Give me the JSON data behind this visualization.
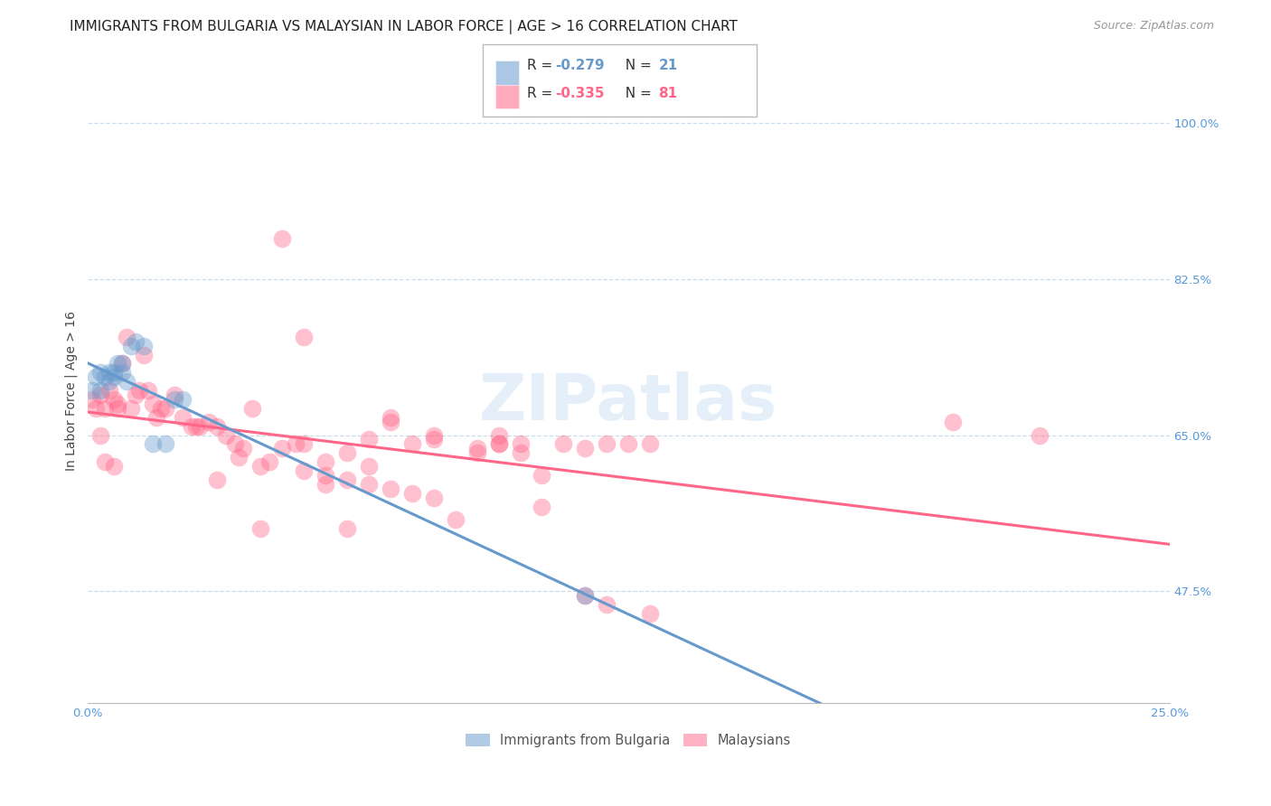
{
  "title": "IMMIGRANTS FROM BULGARIA VS MALAYSIAN IN LABOR FORCE | AGE > 16 CORRELATION CHART",
  "source": "Source: ZipAtlas.com",
  "ylabel": "In Labor Force | Age > 16",
  "watermark": "ZIPatlas",
  "xlim": [
    0.0,
    0.25
  ],
  "ylim": [
    0.35,
    1.05
  ],
  "ytick_positions": [
    1.0,
    0.825,
    0.65,
    0.475
  ],
  "ytick_labels": [
    "100.0%",
    "82.5%",
    "65.0%",
    "47.5%"
  ],
  "bulgaria_color": "#6699CC",
  "malaysia_color": "#FF6688",
  "legend_label_1": "R = -0.279   N = 21",
  "legend_label_2": "R = -0.335   N = 81",
  "legend_bottom_label_1": "Immigrants from Bulgaria",
  "legend_bottom_label_2": "Malaysians",
  "background_color": "#FFFFFF",
  "grid_color": "#CCDDEE",
  "bulgaria_x": [
    0.001,
    0.002,
    0.003,
    0.003,
    0.004,
    0.005,
    0.005,
    0.006,
    0.006,
    0.007,
    0.008,
    0.008,
    0.009,
    0.01,
    0.011,
    0.013,
    0.015,
    0.018,
    0.02,
    0.022,
    0.115
  ],
  "bulgaria_y": [
    0.7,
    0.715,
    0.7,
    0.72,
    0.715,
    0.71,
    0.72,
    0.715,
    0.72,
    0.73,
    0.72,
    0.73,
    0.71,
    0.75,
    0.755,
    0.75,
    0.64,
    0.64,
    0.69,
    0.69,
    0.47
  ],
  "malaysia_x": [
    0.001,
    0.002,
    0.003,
    0.003,
    0.004,
    0.004,
    0.005,
    0.006,
    0.006,
    0.007,
    0.007,
    0.008,
    0.009,
    0.01,
    0.011,
    0.012,
    0.013,
    0.014,
    0.015,
    0.016,
    0.017,
    0.018,
    0.02,
    0.022,
    0.024,
    0.026,
    0.028,
    0.03,
    0.032,
    0.034,
    0.036,
    0.038,
    0.04,
    0.042,
    0.045,
    0.048,
    0.05,
    0.055,
    0.06,
    0.065,
    0.07,
    0.075,
    0.08,
    0.085,
    0.09,
    0.095,
    0.1,
    0.105,
    0.11,
    0.115,
    0.12,
    0.125,
    0.13,
    0.06,
    0.065,
    0.07,
    0.08,
    0.09,
    0.095,
    0.1,
    0.025,
    0.03,
    0.035,
    0.04,
    0.05,
    0.055,
    0.06,
    0.065,
    0.07,
    0.075,
    0.08,
    0.045,
    0.05,
    0.055,
    0.115,
    0.12,
    0.13,
    0.095,
    0.105,
    0.2,
    0.22
  ],
  "malaysia_y": [
    0.69,
    0.68,
    0.695,
    0.65,
    0.68,
    0.62,
    0.7,
    0.69,
    0.615,
    0.685,
    0.68,
    0.73,
    0.76,
    0.68,
    0.695,
    0.7,
    0.74,
    0.7,
    0.685,
    0.67,
    0.68,
    0.68,
    0.695,
    0.67,
    0.66,
    0.66,
    0.665,
    0.6,
    0.65,
    0.64,
    0.635,
    0.68,
    0.545,
    0.62,
    0.635,
    0.64,
    0.64,
    0.62,
    0.63,
    0.645,
    0.67,
    0.64,
    0.645,
    0.555,
    0.635,
    0.64,
    0.64,
    0.605,
    0.64,
    0.635,
    0.64,
    0.64,
    0.64,
    0.545,
    0.615,
    0.665,
    0.65,
    0.63,
    0.64,
    0.63,
    0.66,
    0.66,
    0.625,
    0.615,
    0.61,
    0.605,
    0.6,
    0.595,
    0.59,
    0.585,
    0.58,
    0.87,
    0.76,
    0.595,
    0.47,
    0.46,
    0.45,
    0.65,
    0.57,
    0.665,
    0.65
  ],
  "title_fontsize": 11,
  "source_fontsize": 9,
  "axis_label_fontsize": 10,
  "tick_fontsize": 9.5,
  "legend_fontsize": 11,
  "watermark_fontsize": 52,
  "watermark_color": "#AACCEE",
  "watermark_alpha": 0.3,
  "title_color": "#222222",
  "axis_label_color": "#444444",
  "tick_color": "#5599DD",
  "source_color": "#999999"
}
